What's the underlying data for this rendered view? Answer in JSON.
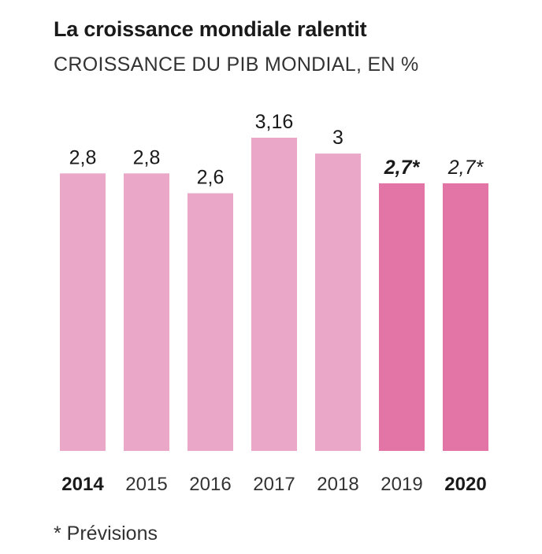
{
  "header": {
    "title": "La croissance mondiale ralentit",
    "subtitle": "CROISSANCE DU PIB MONDIAL, EN %"
  },
  "footnote": "* Prévisions",
  "colors": {
    "bar": "#eaa7c7",
    "bar_forecast": "#e275a6",
    "text": "#1a1a1a",
    "muted_text": "#333333"
  },
  "chart_data": {
    "type": "bar",
    "title": "La croissance mondiale ralentit",
    "subtitle": "CROISSANCE DU PIB MONDIAL, EN %",
    "categories": [
      "2014",
      "2015",
      "2016",
      "2017",
      "2018",
      "2019",
      "2020"
    ],
    "values": [
      2.8,
      2.8,
      2.6,
      3.16,
      3,
      2.7,
      2.7
    ],
    "value_labels": [
      "2,8",
      "2,8",
      "2,6",
      "3,16",
      "3",
      "2,7*",
      "2,7*"
    ],
    "forecast": [
      false,
      false,
      false,
      false,
      false,
      true,
      true
    ],
    "category_bold": [
      true,
      false,
      false,
      false,
      false,
      false,
      true
    ],
    "value_style": [
      "normal",
      "normal",
      "normal",
      "normal",
      "normal",
      "bold-italic",
      "italic"
    ],
    "ylim": [
      0,
      3.16
    ],
    "xlabel": "",
    "ylabel": "",
    "grid": false,
    "legend": "none"
  }
}
